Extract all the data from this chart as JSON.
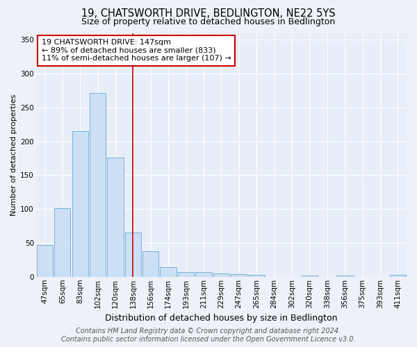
{
  "title": "19, CHATSWORTH DRIVE, BEDLINGTON, NE22 5YS",
  "subtitle": "Size of property relative to detached houses in Bedlington",
  "xlabel": "Distribution of detached houses by size in Bedlington",
  "ylabel": "Number of detached properties",
  "categories": [
    "47sqm",
    "65sqm",
    "83sqm",
    "102sqm",
    "120sqm",
    "138sqm",
    "156sqm",
    "174sqm",
    "193sqm",
    "211sqm",
    "229sqm",
    "247sqm",
    "265sqm",
    "284sqm",
    "302sqm",
    "320sqm",
    "338sqm",
    "356sqm",
    "375sqm",
    "393sqm",
    "411sqm"
  ],
  "values": [
    47,
    101,
    215,
    271,
    176,
    65,
    38,
    14,
    7,
    7,
    5,
    4,
    3,
    0,
    0,
    2,
    0,
    2,
    0,
    0,
    3
  ],
  "bar_color": "#cce0f5",
  "bar_edge_color": "#7ab0d8",
  "red_line_x": 5.5,
  "annotation_text": "19 CHATSWORTH DRIVE: 147sqm\n← 89% of detached houses are smaller (833)\n11% of semi-detached houses are larger (107) →",
  "annotation_box_color": "#ffffff",
  "annotation_border_color": "#cc0000",
  "ylim": [
    0,
    360
  ],
  "yticks": [
    0,
    50,
    100,
    150,
    200,
    250,
    300,
    350
  ],
  "bg_color": "#eef2f8",
  "plot_bg_color": "#e8eef8",
  "grid_color": "#d0d8e8",
  "footer": "Contains HM Land Registry data © Crown copyright and database right 2024.\nContains public sector information licensed under the Open Government Licence v3.0.",
  "title_fontsize": 10.5,
  "subtitle_fontsize": 9,
  "ylabel_fontsize": 8,
  "xlabel_fontsize": 9,
  "annotation_fontsize": 8,
  "footer_fontsize": 7,
  "tick_fontsize": 7.5
}
